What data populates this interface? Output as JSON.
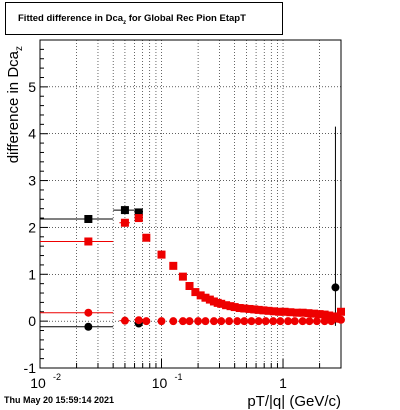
{
  "title": {
    "text": "Fitted difference in Dca",
    "sub": "z",
    "rest": " for Global Rec Pion EtapT"
  },
  "footer": "Thu May 20 15:59:14 2021",
  "chart_data": {
    "type": "scatter",
    "xscale": "log",
    "xlim": [
      0.01,
      3.0
    ],
    "ylim": [
      -1,
      6
    ],
    "ylabel": "difference in Dca",
    "ylabel_sub": "z",
    "xlabel": "pT/|q| (GeV/c)",
    "yticks": [
      "-1",
      "0",
      "1",
      "2",
      "3",
      "4",
      "5"
    ],
    "xticks": [
      {
        "value": 0.01,
        "base": "10",
        "exp": "-2"
      },
      {
        "value": 0.1,
        "base": "10",
        "exp": "-1"
      },
      {
        "value": 1,
        "base": "1",
        "exp": ""
      }
    ],
    "grid": true,
    "series": [
      {
        "color": "#000000",
        "marker": "square",
        "points": [
          [
            0.025,
            2.18,
            0.015
          ],
          [
            0.05,
            2.37,
            0.01
          ],
          [
            0.065,
            2.32,
            0.005
          ]
        ]
      },
      {
        "color": "#ee0000",
        "marker": "square",
        "points": [
          [
            0.025,
            1.7,
            0.015
          ],
          [
            0.05,
            2.1,
            0.005
          ],
          [
            0.065,
            2.2,
            0.005
          ],
          [
            0.075,
            1.78,
            0
          ],
          [
            0.1,
            1.42,
            0
          ],
          [
            0.125,
            1.18,
            0
          ],
          [
            0.15,
            0.95,
            0
          ],
          [
            0.17,
            0.75,
            0
          ],
          [
            0.19,
            0.62,
            0
          ],
          [
            0.21,
            0.55,
            0
          ],
          [
            0.23,
            0.5,
            0
          ],
          [
            0.25,
            0.46,
            0
          ],
          [
            0.27,
            0.42,
            0
          ],
          [
            0.29,
            0.39,
            0
          ],
          [
            0.31,
            0.37,
            0
          ],
          [
            0.34,
            0.34,
            0
          ],
          [
            0.37,
            0.32,
            0
          ],
          [
            0.4,
            0.3,
            0
          ],
          [
            0.44,
            0.28,
            0
          ],
          [
            0.48,
            0.27,
            0
          ],
          [
            0.53,
            0.26,
            0
          ],
          [
            0.58,
            0.25,
            0
          ],
          [
            0.63,
            0.24,
            0
          ],
          [
            0.69,
            0.23,
            0
          ],
          [
            0.76,
            0.22,
            0
          ],
          [
            0.84,
            0.21,
            0
          ],
          [
            0.93,
            0.2,
            0
          ],
          [
            1.03,
            0.2,
            0
          ],
          [
            1.15,
            0.19,
            0
          ],
          [
            1.3,
            0.18,
            0
          ],
          [
            1.45,
            0.18,
            0
          ],
          [
            1.62,
            0.17,
            0
          ],
          [
            1.8,
            0.16,
            0
          ],
          [
            2.0,
            0.15,
            0
          ],
          [
            2.2,
            0.14,
            0
          ],
          [
            2.4,
            0.12,
            0
          ],
          [
            2.6,
            0.1,
            0
          ],
          [
            2.8,
            0.08,
            0
          ],
          [
            3.0,
            0.2,
            0
          ]
        ]
      },
      {
        "color": "#000000",
        "marker": "circle",
        "points": [
          [
            0.025,
            -0.12,
            0.015
          ],
          [
            0.065,
            -0.05,
            0.005
          ],
          [
            2.7,
            0.72,
            0
          ]
        ]
      },
      {
        "color": "#ee0000",
        "marker": "circle",
        "points": [
          [
            0.025,
            0.18,
            0.015
          ],
          [
            0.05,
            0.01,
            0.005
          ],
          [
            0.065,
            0.02,
            0.005
          ],
          [
            0.075,
            0.0,
            0
          ],
          [
            0.1,
            0.0,
            0
          ],
          [
            0.125,
            0.0,
            0
          ],
          [
            0.15,
            0.0,
            0
          ],
          [
            0.17,
            0.0,
            0
          ],
          [
            0.2,
            0.0,
            0
          ],
          [
            0.23,
            0.0,
            0
          ],
          [
            0.27,
            0.0,
            0
          ],
          [
            0.31,
            0.0,
            0
          ],
          [
            0.36,
            0.0,
            0
          ],
          [
            0.42,
            0.0,
            0
          ],
          [
            0.48,
            0.0,
            0
          ],
          [
            0.55,
            0.0,
            0
          ],
          [
            0.63,
            0.0,
            0
          ],
          [
            0.72,
            0.0,
            0
          ],
          [
            0.83,
            0.0,
            0
          ],
          [
            0.95,
            0.0,
            0
          ],
          [
            1.1,
            0.0,
            0
          ],
          [
            1.25,
            0.0,
            0
          ],
          [
            1.45,
            0.0,
            0
          ],
          [
            1.65,
            0.0,
            0
          ],
          [
            1.9,
            0.0,
            0
          ],
          [
            2.2,
            0.0,
            0
          ],
          [
            2.5,
            0.0,
            0
          ],
          [
            2.8,
            0.05,
            0
          ],
          [
            3.0,
            0.03,
            0
          ]
        ]
      }
    ],
    "error_bar_points": [
      [
        2.7,
        -0.1,
        4.15
      ]
    ]
  }
}
